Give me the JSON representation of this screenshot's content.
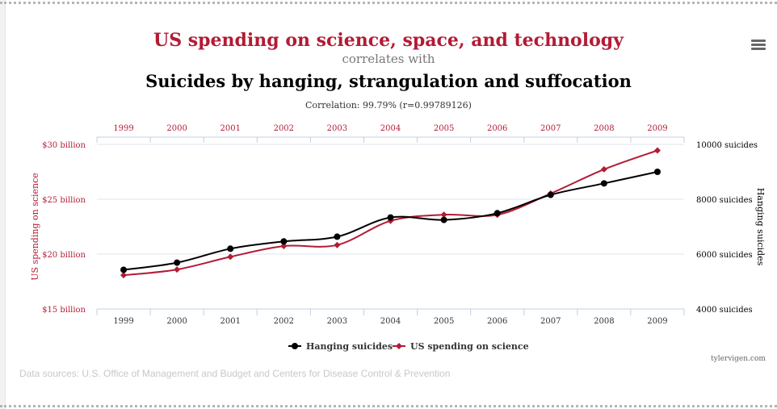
{
  "header": {
    "title_primary": "US spending on science, space, and technology",
    "connector": "correlates with",
    "title_secondary": "Suicides by hanging, strangulation and suffocation",
    "correlation": "Correlation: 99.79% (r=0.99789126)"
  },
  "footer": {
    "credit": "tylervigen.com",
    "sources": "Data sources: U.S. Office of Management and Budget and Centers for Disease Control & Prevention"
  },
  "menu_icon": "hamburger-menu-icon",
  "colors": {
    "primary": "#b31b34",
    "secondary": "#000000",
    "grid": "#dfe6ec",
    "axis": "#c0d0e0"
  },
  "chart_data": {
    "type": "line",
    "x": [
      1999,
      2000,
      2001,
      2002,
      2003,
      2004,
      2005,
      2006,
      2007,
      2008,
      2009
    ],
    "x_tick_labels": [
      "1999",
      "2000",
      "2001",
      "2002",
      "2003",
      "2004",
      "2005",
      "2006",
      "2007",
      "2008",
      "2009"
    ],
    "series": [
      {
        "name": "Hanging suicides",
        "axis": "right",
        "color": "#000000",
        "marker": "circle",
        "values": [
          5427,
          5688,
          6198,
          6462,
          6635,
          7336,
          7248,
          7491,
          8161,
          8578,
          9000
        ]
      },
      {
        "name": "US spending on science",
        "axis": "left",
        "color": "#b31b34",
        "marker": "diamond",
        "values": [
          18.079,
          18.594,
          19.753,
          20.734,
          20.831,
          23.029,
          23.597,
          23.584,
          25.525,
          27.731,
          29.449
        ]
      }
    ],
    "left_axis": {
      "label": "US spending on science",
      "range": [
        15,
        30
      ],
      "ticks": [
        15,
        20,
        25,
        30
      ],
      "tick_labels": [
        "$15 billion",
        "$20 billion",
        "$25 billion",
        "$30 billion"
      ]
    },
    "right_axis": {
      "label": "Hanging suicides",
      "range": [
        4000,
        10000
      ],
      "ticks": [
        4000,
        6000,
        8000,
        10000
      ],
      "tick_labels": [
        "4000 suicides",
        "6000 suicides",
        "8000 suicides",
        "10000 suicides"
      ]
    },
    "grid": true,
    "legend_position": "bottom-center"
  }
}
